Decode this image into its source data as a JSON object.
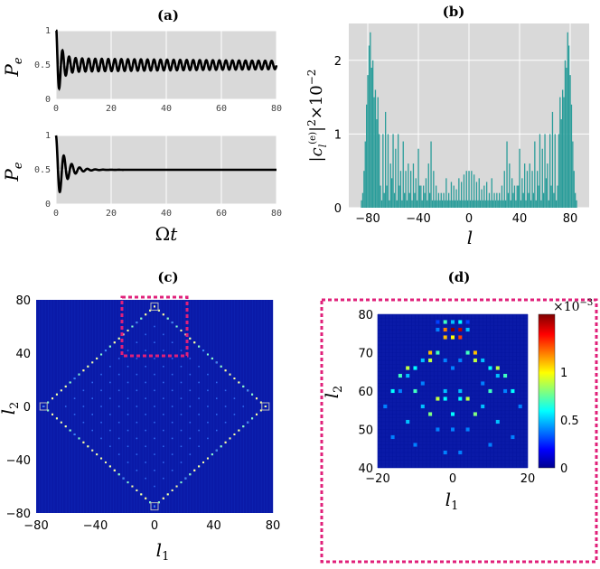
{
  "chart_data": [
    {
      "id": "a-top",
      "title": "(a)",
      "type": "line",
      "ylabel": "P_e",
      "xlim": [
        0,
        80
      ],
      "ylim": [
        0,
        1
      ],
      "xticks": [
        "0",
        "20",
        "40",
        "60",
        "80"
      ],
      "yticks": [
        "0",
        "0.5",
        "1"
      ],
      "grid": true,
      "curve": {
        "start": 1.0,
        "mean": 0.5,
        "amp": 0.5,
        "omega": 2.65,
        "decay": "slow",
        "note": "damped oscillation around 0.5, persistent small amplitude (~0.05) to t=80"
      }
    },
    {
      "id": "a-bottom",
      "type": "line",
      "ylabel": "P_e",
      "xlabel": "Ωt",
      "xlim": [
        0,
        80
      ],
      "ylim": [
        0,
        1
      ],
      "xticks": [
        "0",
        "20",
        "40",
        "60",
        "80"
      ],
      "yticks": [
        "0",
        "0.5",
        "1"
      ],
      "grid": true,
      "curve": {
        "start": 1.0,
        "mean": 0.5,
        "amp": 0.5,
        "omega": 2.2,
        "decay": "fast",
        "note": "damped oscillation around 0.5, flat by t~15"
      }
    },
    {
      "id": "b",
      "title": "(b)",
      "type": "bar",
      "ylabel": "|c_l^{(e)}|^2 ×10^{-2}",
      "xlabel": "l",
      "xlim": [
        -95,
        95
      ],
      "ylim": [
        0,
        2.5
      ],
      "xticks": [
        "−80",
        "−40",
        "0",
        "40",
        "80"
      ],
      "yticks": [
        "0",
        "1",
        "2"
      ],
      "grid": true,
      "bar_color": "#2a9d9a",
      "bars": [
        [
          -86,
          0.0
        ],
        [
          -85,
          0.1
        ],
        [
          -84,
          0.2
        ],
        [
          -83,
          0.5
        ],
        [
          -82,
          0.9
        ],
        [
          -81,
          1.4
        ],
        [
          -80,
          1.8
        ],
        [
          -79,
          2.2
        ],
        [
          -78,
          2.38
        ],
        [
          -77,
          1.9
        ],
        [
          -76,
          2.0
        ],
        [
          -75,
          1.5
        ],
        [
          -74,
          1.6
        ],
        [
          -73,
          1.2
        ],
        [
          -72,
          1.5
        ],
        [
          -71,
          1.0
        ],
        [
          -70,
          0.3
        ],
        [
          -69,
          0.1
        ],
        [
          -68,
          1.0
        ],
        [
          -67,
          0.2
        ],
        [
          -66,
          1.3
        ],
        [
          -65,
          0.3
        ],
        [
          -64,
          1.0
        ],
        [
          -63,
          0.1
        ],
        [
          -62,
          0.6
        ],
        [
          -61,
          0.4
        ],
        [
          -60,
          1.0
        ],
        [
          -59,
          0.2
        ],
        [
          -58,
          0.8
        ],
        [
          -57,
          0.1
        ],
        [
          -56,
          1.0
        ],
        [
          -55,
          0.3
        ],
        [
          -54,
          0.5
        ],
        [
          -53,
          0.1
        ],
        [
          -52,
          0.9
        ],
        [
          -51,
          0.2
        ],
        [
          -50,
          0.5
        ],
        [
          -49,
          0.1
        ],
        [
          -48,
          0.6
        ],
        [
          -47,
          0.2
        ],
        [
          -46,
          0.5
        ],
        [
          -45,
          0.1
        ],
        [
          -44,
          0.6
        ],
        [
          -43,
          0.2
        ],
        [
          -42,
          0.4
        ],
        [
          -41,
          0.1
        ],
        [
          -40,
          0.8
        ],
        [
          -39,
          0.3
        ],
        [
          -38,
          0.3
        ],
        [
          -37,
          0.1
        ],
        [
          -36,
          0.3
        ],
        [
          -35,
          0.2
        ],
        [
          -34,
          0.4
        ],
        [
          -33,
          0.1
        ],
        [
          -32,
          0.6
        ],
        [
          -31,
          0.2
        ],
        [
          -30,
          0.9
        ],
        [
          -29,
          0.1
        ],
        [
          -28,
          0.5
        ],
        [
          -27,
          0.1
        ],
        [
          -26,
          0.3
        ],
        [
          -25,
          0.1
        ],
        [
          -24,
          0.2
        ],
        [
          -23,
          0.1
        ],
        [
          -22,
          0.2
        ],
        [
          -21,
          0.1
        ],
        [
          -20,
          0.2
        ],
        [
          -19,
          0.1
        ],
        [
          -18,
          0.4
        ],
        [
          -17,
          0.1
        ],
        [
          -16,
          0.2
        ],
        [
          -15,
          0.1
        ],
        [
          -14,
          0.35
        ],
        [
          -13,
          0.1
        ],
        [
          -12,
          0.3
        ],
        [
          -11,
          0.1
        ],
        [
          -10,
          0.25
        ],
        [
          -9,
          0.1
        ],
        [
          -8,
          0.4
        ],
        [
          -7,
          0.1
        ],
        [
          -6,
          0.35
        ],
        [
          -5,
          0.1
        ],
        [
          -4,
          0.45
        ],
        [
          -3,
          0.1
        ],
        [
          -2,
          0.5
        ],
        [
          -1,
          0.1
        ],
        [
          0,
          0.5
        ],
        [
          1,
          0.1
        ],
        [
          2,
          0.5
        ],
        [
          3,
          0.1
        ],
        [
          4,
          0.45
        ],
        [
          5,
          0.1
        ],
        [
          6,
          0.35
        ],
        [
          7,
          0.1
        ],
        [
          8,
          0.4
        ],
        [
          9,
          0.1
        ],
        [
          10,
          0.25
        ],
        [
          11,
          0.1
        ],
        [
          12,
          0.3
        ],
        [
          13,
          0.1
        ],
        [
          14,
          0.35
        ],
        [
          15,
          0.1
        ],
        [
          16,
          0.2
        ],
        [
          17,
          0.1
        ],
        [
          18,
          0.4
        ],
        [
          19,
          0.1
        ],
        [
          20,
          0.2
        ],
        [
          21,
          0.1
        ],
        [
          22,
          0.2
        ],
        [
          23,
          0.1
        ],
        [
          24,
          0.2
        ],
        [
          25,
          0.1
        ],
        [
          26,
          0.3
        ],
        [
          27,
          0.1
        ],
        [
          28,
          0.5
        ],
        [
          29,
          0.1
        ],
        [
          30,
          0.9
        ],
        [
          31,
          0.2
        ],
        [
          32,
          0.6
        ],
        [
          33,
          0.1
        ],
        [
          34,
          0.4
        ],
        [
          35,
          0.2
        ],
        [
          36,
          0.3
        ],
        [
          37,
          0.1
        ],
        [
          38,
          0.3
        ],
        [
          39,
          0.3
        ],
        [
          40,
          0.8
        ],
        [
          41,
          0.1
        ],
        [
          42,
          0.4
        ],
        [
          43,
          0.2
        ],
        [
          44,
          0.6
        ],
        [
          45,
          0.1
        ],
        [
          46,
          0.5
        ],
        [
          47,
          0.2
        ],
        [
          48,
          0.6
        ],
        [
          49,
          0.1
        ],
        [
          50,
          0.5
        ],
        [
          51,
          0.2
        ],
        [
          52,
          0.9
        ],
        [
          53,
          0.1
        ],
        [
          54,
          0.5
        ],
        [
          55,
          0.3
        ],
        [
          56,
          1.0
        ],
        [
          57,
          0.1
        ],
        [
          58,
          0.8
        ],
        [
          59,
          0.2
        ],
        [
          60,
          1.0
        ],
        [
          61,
          0.4
        ],
        [
          62,
          0.6
        ],
        [
          63,
          0.1
        ],
        [
          64,
          1.0
        ],
        [
          65,
          0.3
        ],
        [
          66,
          1.3
        ],
        [
          67,
          0.2
        ],
        [
          68,
          1.0
        ],
        [
          69,
          0.1
        ],
        [
          70,
          0.3
        ],
        [
          71,
          1.0
        ],
        [
          72,
          1.5
        ],
        [
          73,
          1.2
        ],
        [
          74,
          1.6
        ],
        [
          75,
          1.5
        ],
        [
          76,
          2.0
        ],
        [
          77,
          1.9
        ],
        [
          78,
          2.38
        ],
        [
          79,
          2.2
        ],
        [
          80,
          1.8
        ],
        [
          81,
          1.4
        ],
        [
          82,
          0.9
        ],
        [
          83,
          0.5
        ],
        [
          84,
          0.2
        ],
        [
          85,
          0.1
        ],
        [
          86,
          0.0
        ]
      ]
    },
    {
      "id": "c",
      "title": "(c)",
      "type": "heatmap",
      "xlabel": "l_1",
      "ylabel": "l_2",
      "xlim": [
        -80,
        80
      ],
      "ylim": [
        -80,
        80
      ],
      "xticks": [
        "−80",
        "−40",
        "0",
        "40",
        "80"
      ],
      "yticks": [
        "80",
        "40",
        "0",
        "−40",
        "−80"
      ],
      "pattern": "diamond with vertices at (0,±75) and (±75,0); bright cells along edges and interior lattice",
      "highlight_box": {
        "x": [
          -22,
          22
        ],
        "y": [
          38,
          82
        ],
        "color": "#e0207a"
      }
    },
    {
      "id": "d",
      "title": "(d)",
      "type": "heatmap",
      "xlabel": "l_1",
      "ylabel": "l_2",
      "xlim": [
        -20,
        20
      ],
      "ylim": [
        40,
        80
      ],
      "xticks": [
        "−20",
        "0",
        "20"
      ],
      "yticks": [
        "80",
        "70",
        "60",
        "50",
        "40"
      ],
      "colorbar": {
        "min": 0,
        "max": 1.6,
        "ticks": [
          "0",
          "0.5",
          "1"
        ],
        "scale_label": "×10^{-3}"
      },
      "frame_color": "#e0207a",
      "cells": [
        [
          0,
          76,
          1.6
        ],
        [
          2,
          76,
          1.5
        ],
        [
          -2,
          76,
          1.2
        ],
        [
          0,
          74,
          1.0
        ],
        [
          2,
          74,
          1.3
        ],
        [
          -2,
          74,
          1.1
        ],
        [
          0,
          78,
          0.5
        ],
        [
          2,
          78,
          0.6
        ],
        [
          -2,
          78,
          0.7
        ],
        [
          4,
          76,
          0.5
        ],
        [
          -4,
          76,
          0.4
        ],
        [
          4,
          78,
          0.3
        ],
        [
          -4,
          78,
          0.3
        ],
        [
          -6,
          70,
          1.1
        ],
        [
          -4,
          70,
          0.7
        ],
        [
          6,
          70,
          1.1
        ],
        [
          4,
          70,
          0.7
        ],
        [
          -6,
          68,
          0.9
        ],
        [
          6,
          68,
          0.9
        ],
        [
          -8,
          68,
          0.5
        ],
        [
          8,
          68,
          0.5
        ],
        [
          -10,
          66,
          0.6
        ],
        [
          10,
          66,
          0.6
        ],
        [
          -12,
          66,
          0.9
        ],
        [
          12,
          66,
          0.9
        ],
        [
          -14,
          64,
          0.7
        ],
        [
          14,
          64,
          0.7
        ],
        [
          -12,
          64,
          0.5
        ],
        [
          12,
          64,
          0.5
        ],
        [
          -16,
          60,
          0.6
        ],
        [
          16,
          60,
          0.6
        ],
        [
          -14,
          60,
          0.4
        ],
        [
          14,
          60,
          0.4
        ],
        [
          -10,
          60,
          0.7
        ],
        [
          10,
          60,
          0.7
        ],
        [
          -2,
          60,
          0.5
        ],
        [
          2,
          60,
          0.5
        ],
        [
          -4,
          58,
          0.9
        ],
        [
          4,
          58,
          0.9
        ],
        [
          -2,
          58,
          0.6
        ],
        [
          2,
          58,
          0.6
        ],
        [
          -8,
          56,
          0.5
        ],
        [
          8,
          56,
          0.5
        ],
        [
          -6,
          54,
          0.8
        ],
        [
          6,
          54,
          0.8
        ],
        [
          0,
          54,
          0.6
        ],
        [
          -12,
          52,
          0.5
        ],
        [
          12,
          52,
          0.5
        ],
        [
          -4,
          50,
          0.4
        ],
        [
          4,
          50,
          0.4
        ],
        [
          0,
          50,
          0.4
        ],
        [
          -16,
          48,
          0.4
        ],
        [
          16,
          48,
          0.4
        ],
        [
          -10,
          46,
          0.4
        ],
        [
          10,
          46,
          0.4
        ],
        [
          -2,
          44,
          0.4
        ],
        [
          2,
          44,
          0.4
        ],
        [
          -18,
          56,
          0.4
        ],
        [
          18,
          56,
          0.4
        ],
        [
          -8,
          62,
          0.4
        ],
        [
          8,
          62,
          0.4
        ],
        [
          0,
          66,
          0.4
        ],
        [
          -2,
          68,
          0.4
        ],
        [
          2,
          68,
          0.4
        ]
      ]
    }
  ]
}
